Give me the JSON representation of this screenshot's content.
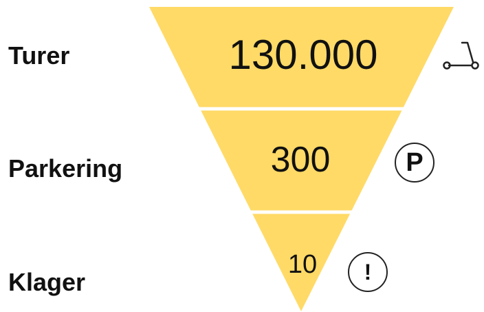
{
  "colors": {
    "funnel_fill": "#FFDA66",
    "divider": "#FFFFFF",
    "text": "#111111"
  },
  "funnel": {
    "rows": [
      {
        "label": "Turer",
        "value": "130.000",
        "icon": "scooter-icon"
      },
      {
        "label": "Parkering",
        "value": "300",
        "icon": "parking-icon",
        "icon_text": "P"
      },
      {
        "label": "Klager",
        "value": "10",
        "icon": "exclamation-icon",
        "icon_text": "!"
      }
    ]
  }
}
